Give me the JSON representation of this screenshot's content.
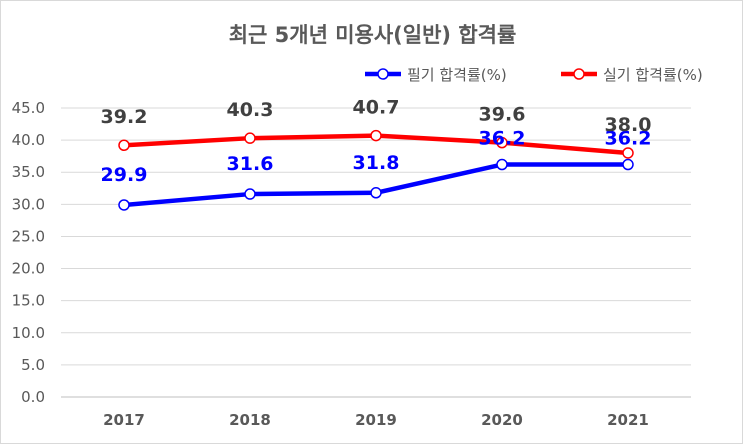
{
  "chart_data": {
    "type": "line",
    "title": "최근 5개년 미용사(일반) 합격률",
    "categories": [
      "2017",
      "2018",
      "2019",
      "2020",
      "2021"
    ],
    "ylim": [
      0,
      45
    ],
    "yticks": [
      "0.0",
      "5.0",
      "10.0",
      "15.0",
      "20.0",
      "25.0",
      "30.0",
      "35.0",
      "40.0",
      "45.0"
    ],
    "grid": true,
    "legend_position": "top-right",
    "series": [
      {
        "name": "필기 합격률(%)",
        "color": "#0000ff",
        "values": [
          29.9,
          31.6,
          31.8,
          36.2,
          36.2
        ],
        "labels": [
          "29.9",
          "31.6",
          "31.8",
          "36.2",
          "36.2"
        ],
        "label_color": "#0000ff"
      },
      {
        "name": "실기 합격률(%)",
        "color": "#ff0000",
        "values": [
          39.2,
          40.3,
          40.7,
          39.6,
          38.0
        ],
        "labels": [
          "39.2",
          "40.3",
          "40.7",
          "39.6",
          "38.0"
        ],
        "label_color": "#404040"
      }
    ]
  }
}
